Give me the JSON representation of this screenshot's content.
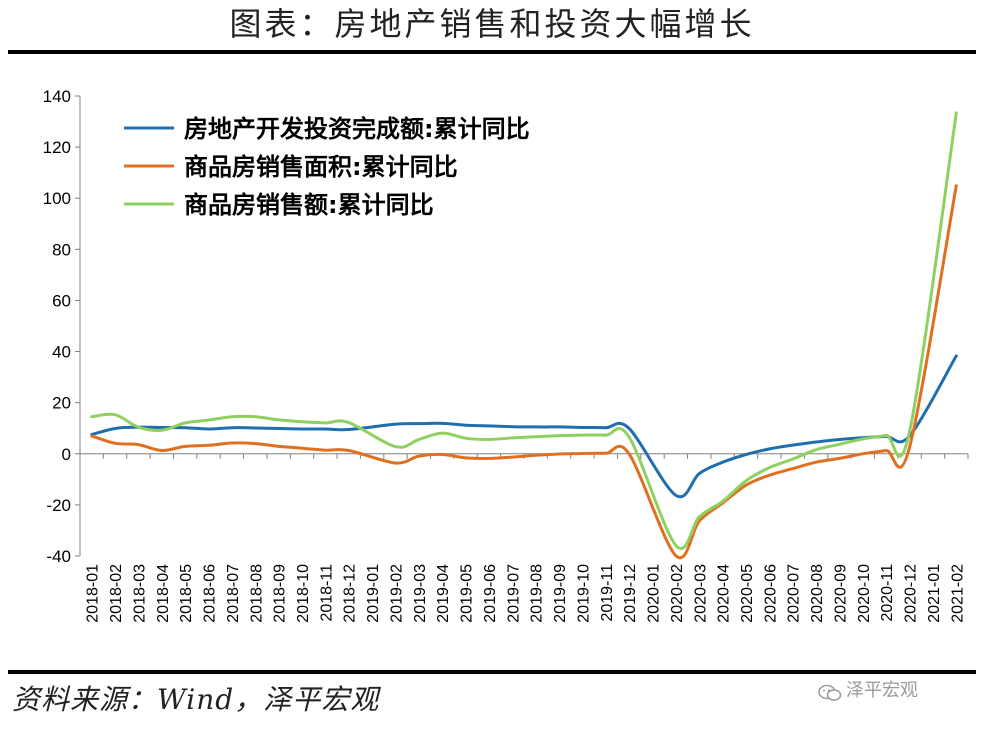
{
  "title": "图表：房地产销售和投资大幅增长",
  "source": "资料来源：Wind，泽平宏观",
  "watermark": {
    "text": "泽平宏观",
    "icon": "wechat-icon"
  },
  "chart_data": {
    "type": "line",
    "title": "",
    "xlabel": "",
    "ylabel": "",
    "ylim": [
      -40,
      140
    ],
    "yticks": [
      -40,
      -20,
      0,
      20,
      40,
      60,
      80,
      100,
      120,
      140
    ],
    "grid": false,
    "legend_position": "top-left",
    "categories": [
      "2018-01",
      "2018-02",
      "2018-03",
      "2018-04",
      "2018-05",
      "2018-06",
      "2018-07",
      "2018-08",
      "2018-09",
      "2018-10",
      "2018-11",
      "2018-12",
      "2019-01",
      "2019-02",
      "2019-03",
      "2019-04",
      "2019-05",
      "2019-06",
      "2019-07",
      "2019-08",
      "2019-09",
      "2019-10",
      "2019-11",
      "2019-12",
      "2020-01",
      "2020-02",
      "2020-03",
      "2020-04",
      "2020-05",
      "2020-06",
      "2020-07",
      "2020-08",
      "2020-09",
      "2020-10",
      "2020-11",
      "2020-12",
      "2021-01",
      "2021-02"
    ],
    "series": [
      {
        "name": "房地产开发投资完成额:累计同比",
        "color": "#1f6fae",
        "x": [
          "2018-01",
          "2018-02",
          "2018-03",
          "2018-04",
          "2018-05",
          "2018-06",
          "2018-07",
          "2018-08",
          "2018-09",
          "2018-10",
          "2018-11",
          "2018-12",
          "2019-02",
          "2019-03",
          "2019-04",
          "2019-05",
          "2019-06",
          "2019-07",
          "2019-08",
          "2019-09",
          "2019-10",
          "2019-11",
          "2019-12",
          "2020-02",
          "2020-03",
          "2020-04",
          "2020-05",
          "2020-06",
          "2020-07",
          "2020-08",
          "2020-09",
          "2020-10",
          "2020-11",
          "2020-12",
          "2021-02"
        ],
        "values": [
          7.5,
          9.9,
          10.4,
          10.3,
          10.2,
          9.7,
          10.2,
          10.1,
          9.9,
          9.7,
          9.7,
          9.5,
          11.6,
          11.8,
          11.9,
          11.2,
          10.9,
          10.6,
          10.5,
          10.5,
          10.3,
          10.2,
          9.9,
          -16.3,
          -7.7,
          -3.3,
          -0.3,
          1.9,
          3.4,
          4.6,
          5.6,
          6.3,
          6.8,
          7.0,
          38.3
        ]
      },
      {
        "name": "商品房销售面积:累计同比",
        "color": "#e07020",
        "x": [
          "2018-01",
          "2018-02",
          "2018-03",
          "2018-04",
          "2018-05",
          "2018-06",
          "2018-07",
          "2018-08",
          "2018-09",
          "2018-10",
          "2018-11",
          "2018-12",
          "2019-02",
          "2019-03",
          "2019-04",
          "2019-05",
          "2019-06",
          "2019-07",
          "2019-08",
          "2019-09",
          "2019-10",
          "2019-11",
          "2019-12",
          "2020-02",
          "2020-03",
          "2020-04",
          "2020-05",
          "2020-06",
          "2020-07",
          "2020-08",
          "2020-09",
          "2020-10",
          "2020-11",
          "2020-12",
          "2021-02"
        ],
        "values": [
          7.0,
          4.1,
          3.6,
          1.3,
          2.9,
          3.3,
          4.2,
          4.0,
          2.9,
          2.2,
          1.4,
          1.3,
          -3.6,
          -0.9,
          -0.3,
          -1.6,
          -1.8,
          -1.3,
          -0.6,
          -0.1,
          0.1,
          0.2,
          -0.1,
          -39.9,
          -26.3,
          -19.3,
          -12.3,
          -8.4,
          -5.8,
          -3.3,
          -1.8,
          0.0,
          1.3,
          2.6,
          104.9
        ]
      },
      {
        "name": "商品房销售额:累计同比",
        "color": "#8fd060",
        "x": [
          "2018-01",
          "2018-02",
          "2018-03",
          "2018-04",
          "2018-05",
          "2018-06",
          "2018-07",
          "2018-08",
          "2018-09",
          "2018-10",
          "2018-11",
          "2018-12",
          "2019-02",
          "2019-03",
          "2019-04",
          "2019-05",
          "2019-06",
          "2019-07",
          "2019-08",
          "2019-09",
          "2019-10",
          "2019-11",
          "2019-12",
          "2020-02",
          "2020-03",
          "2020-04",
          "2020-05",
          "2020-06",
          "2020-07",
          "2020-08",
          "2020-09",
          "2020-10",
          "2020-11",
          "2020-12",
          "2021-02"
        ],
        "values": [
          14.5,
          15.3,
          10.4,
          9.2,
          12.1,
          13.2,
          14.5,
          14.5,
          13.3,
          12.5,
          12.1,
          12.2,
          2.8,
          5.6,
          8.1,
          6.1,
          5.6,
          6.2,
          6.7,
          7.1,
          7.3,
          7.3,
          6.5,
          -35.9,
          -24.7,
          -18.6,
          -10.6,
          -5.4,
          -2.1,
          1.6,
          3.7,
          5.8,
          7.2,
          8.7,
          133.4
        ]
      }
    ]
  }
}
